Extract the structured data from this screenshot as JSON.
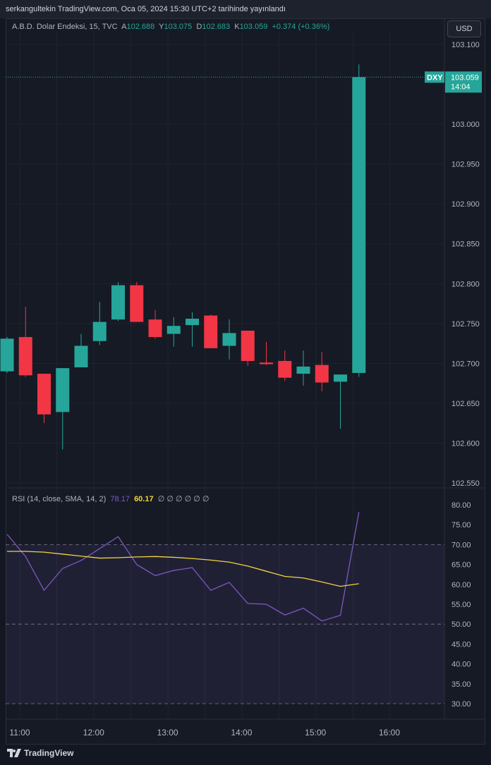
{
  "header": {
    "published": "serkangultekin TradingView.com, Oca 05, 2024 15:30 UTC+2 tarihinde yayınlandı"
  },
  "legend": {
    "symbol": "A.B.D. Dolar Endeksi, 15, TVC",
    "o_label": "A",
    "o": "102.688",
    "h_label": "Y",
    "h": "103.075",
    "l_label": "D",
    "l": "102.683",
    "c_label": "K",
    "c": "103.059",
    "change": "+0.374 (+0.36%)"
  },
  "currency": "USD",
  "price_tag": {
    "symbol": "DXY",
    "price": "103.059",
    "countdown": "14:04"
  },
  "rsi_legend": {
    "label": "RSI (14, close, SMA, 14, 2)",
    "rsi": "78.17",
    "sma": "60.17",
    "zeros": "∅ ∅ ∅ ∅ ∅ ∅"
  },
  "footer": {
    "brand": "TradingView"
  },
  "colors": {
    "up": "#26a69a",
    "down": "#f23645",
    "rsi": "#7e57c2",
    "sma": "#f0d53b"
  },
  "chart_data": [
    {
      "type": "candlestick",
      "ylim": [
        102.55,
        103.1
      ],
      "y_ticks": [
        "103.100",
        "103.000",
        "102.950",
        "102.900",
        "102.850",
        "102.800",
        "102.750",
        "102.700",
        "102.650",
        "102.600",
        "102.550"
      ],
      "x_ticks": [
        "11:00",
        "12:00",
        "13:00",
        "14:00",
        "15:00",
        "16:00"
      ],
      "candles": [
        {
          "t": "10:45",
          "o": 102.69,
          "h": 102.733,
          "l": 102.688,
          "c": 102.731
        },
        {
          "t": "11:00",
          "o": 102.733,
          "h": 102.771,
          "l": 102.683,
          "c": 102.685
        },
        {
          "t": "11:15",
          "o": 102.687,
          "h": 102.687,
          "l": 102.625,
          "c": 102.636
        },
        {
          "t": "11:30",
          "o": 102.639,
          "h": 102.694,
          "l": 102.592,
          "c": 102.694
        },
        {
          "t": "11:45",
          "o": 102.695,
          "h": 102.737,
          "l": 102.695,
          "c": 102.722
        },
        {
          "t": "12:00",
          "o": 102.728,
          "h": 102.777,
          "l": 102.723,
          "c": 102.752
        },
        {
          "t": "12:15",
          "o": 102.755,
          "h": 102.802,
          "l": 102.753,
          "c": 102.798
        },
        {
          "t": "12:30",
          "o": 102.798,
          "h": 102.802,
          "l": 102.752,
          "c": 102.752
        },
        {
          "t": "12:45",
          "o": 102.755,
          "h": 102.767,
          "l": 102.731,
          "c": 102.733
        },
        {
          "t": "13:00",
          "o": 102.737,
          "h": 102.758,
          "l": 102.721,
          "c": 102.747
        },
        {
          "t": "13:15",
          "o": 102.748,
          "h": 102.764,
          "l": 102.721,
          "c": 102.756
        },
        {
          "t": "13:30",
          "o": 102.76,
          "h": 102.761,
          "l": 102.719,
          "c": 102.719
        },
        {
          "t": "13:45",
          "o": 102.722,
          "h": 102.755,
          "l": 102.705,
          "c": 102.738
        },
        {
          "t": "14:00",
          "o": 102.741,
          "h": 102.741,
          "l": 102.697,
          "c": 102.703
        },
        {
          "t": "14:15",
          "o": 102.701,
          "h": 102.727,
          "l": 102.698,
          "c": 102.699
        },
        {
          "t": "14:30",
          "o": 102.703,
          "h": 102.716,
          "l": 102.678,
          "c": 102.682
        },
        {
          "t": "14:45",
          "o": 102.687,
          "h": 102.716,
          "l": 102.672,
          "c": 102.696
        },
        {
          "t": "15:00",
          "o": 102.698,
          "h": 102.714,
          "l": 102.665,
          "c": 102.676
        },
        {
          "t": "15:15",
          "o": 102.677,
          "h": 102.686,
          "l": 102.618,
          "c": 102.686
        },
        {
          "t": "15:30",
          "o": 102.688,
          "h": 103.075,
          "l": 102.683,
          "c": 103.059
        }
      ]
    },
    {
      "type": "line",
      "ylim": [
        28,
        82
      ],
      "y_ticks": [
        "80.00",
        "75.00",
        "70.00",
        "65.00",
        "60.00",
        "55.00",
        "50.00",
        "45.00",
        "40.00",
        "35.00",
        "30.00"
      ],
      "bands": [
        70,
        50,
        30
      ],
      "series": [
        {
          "name": "RSI",
          "values": [
            72.6,
            67,
            58.5,
            64,
            66,
            69,
            72,
            65,
            62.2,
            63.5,
            64.2,
            58.5,
            60.5,
            55.2,
            55,
            52.3,
            54,
            50.8,
            52.2,
            78.17
          ]
        },
        {
          "name": "RSI-based MA",
          "values": [
            68.3,
            68.3,
            68.1,
            67.6,
            67.1,
            66.6,
            66.7,
            66.9,
            67,
            66.8,
            66.5,
            66.1,
            65.6,
            64.6,
            63.3,
            62,
            61.6,
            60.6,
            59.5,
            60.17
          ]
        }
      ]
    }
  ]
}
